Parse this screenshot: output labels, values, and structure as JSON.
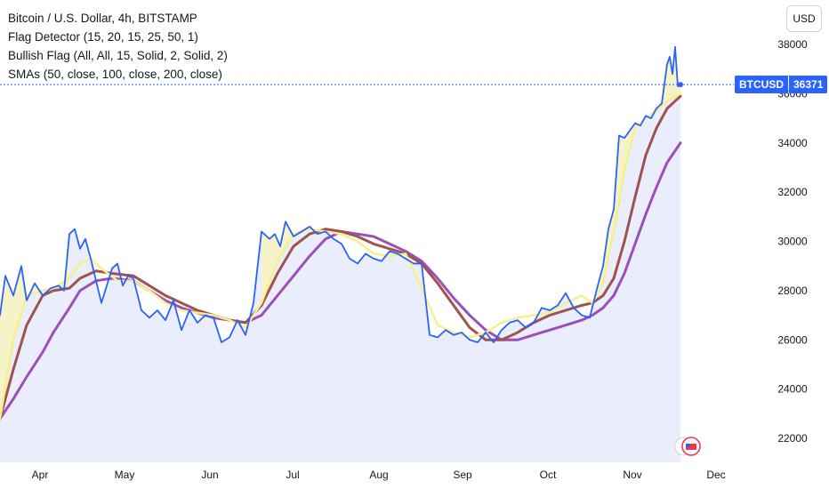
{
  "legend": {
    "line1": "Bitcoin / U.S. Dollar, 4h, BITSTAMP",
    "line2": "Flag Detector (15, 20, 15, 25, 50, 1)",
    "line3": "Bullish Flag (All, All, 15, Solid, 2, Solid, 2)",
    "line4": "SMAs (50, close, 100, close, 200, close)"
  },
  "currency_button": "USD",
  "last_price": {
    "symbol": "BTCUSD",
    "value": "36371"
  },
  "colors": {
    "price": "#2962ff",
    "sma50": "#f5f08c",
    "sma100": "#a0524f",
    "sma200": "#9c4fb8",
    "fill": "#e6ebfb",
    "flag": "#f7f3c2"
  },
  "chart_data": {
    "type": "line",
    "x_ticks": [
      "Apr",
      "May",
      "Jun",
      "Jul",
      "Aug",
      "Sep",
      "Oct",
      "Nov",
      "Dec"
    ],
    "y_ticks": [
      "22000",
      "24000",
      "26000",
      "28000",
      "30000",
      "32000",
      "34000",
      "36000",
      "38000"
    ],
    "ylim": [
      21500,
      39000
    ],
    "xlim": [
      0,
      255
    ],
    "grid": false,
    "series": [
      {
        "key": "price",
        "x": [
          0,
          2,
          5,
          8,
          10,
          13,
          16,
          19,
          22,
          24,
          26,
          28,
          30,
          32,
          34,
          36,
          38,
          40,
          42,
          44,
          46,
          48,
          50,
          53,
          56,
          59,
          62,
          65,
          68,
          71,
          74,
          77,
          80,
          83,
          86,
          89,
          92,
          95,
          98,
          101,
          103,
          105,
          107,
          110,
          113,
          116,
          119,
          122,
          125,
          128,
          131,
          134,
          137,
          140,
          143,
          146,
          149,
          152,
          155,
          158,
          161,
          164,
          167,
          170,
          173,
          176,
          179,
          182,
          185,
          188,
          191,
          194,
          197,
          200,
          203,
          206,
          209,
          212,
          215,
          218,
          221,
          224,
          226,
          228,
          230,
          232,
          234,
          236,
          238,
          240,
          242,
          244,
          246,
          248,
          250,
          251,
          252,
          253,
          254,
          255
        ],
        "y": [
          27000,
          28600,
          27800,
          29000,
          27600,
          28300,
          27800,
          28100,
          28200,
          28000,
          30300,
          30500,
          29700,
          30100,
          29300,
          28400,
          27500,
          28200,
          28900,
          29100,
          28200,
          28600,
          28500,
          27200,
          26900,
          27200,
          26800,
          27600,
          26400,
          27200,
          26700,
          27000,
          26900,
          25900,
          26100,
          26800,
          26200,
          27500,
          30400,
          30100,
          30300,
          29800,
          30800,
          30200,
          30400,
          30600,
          30300,
          30400,
          30100,
          29900,
          29300,
          29100,
          29500,
          29300,
          29200,
          29600,
          29500,
          29300,
          29100,
          29100,
          26200,
          26100,
          26400,
          26200,
          26300,
          26000,
          25900,
          26300,
          25900,
          26400,
          26700,
          26800,
          26500,
          26700,
          27300,
          27200,
          27400,
          27900,
          27300,
          27000,
          26900,
          28200,
          29000,
          30500,
          31300,
          34300,
          34200,
          34500,
          34800,
          34700,
          35100,
          35000,
          35400,
          35600,
          37200,
          37500,
          36800,
          37900,
          36300,
          36371
        ]
      },
      {
        "key": "sma50",
        "x": [
          0,
          5,
          10,
          16,
          20,
          26,
          30,
          34,
          38,
          44,
          50,
          56,
          62,
          68,
          74,
          80,
          86,
          92,
          98,
          104,
          110,
          116,
          122,
          128,
          134,
          140,
          146,
          152,
          158,
          164,
          170,
          176,
          182,
          188,
          194,
          200,
          206,
          212,
          218,
          222,
          226,
          230,
          234,
          238,
          242,
          246,
          250,
          255
        ],
        "y": [
          22800,
          26000,
          27800,
          28000,
          28100,
          28500,
          29100,
          29300,
          28900,
          28400,
          28400,
          28000,
          27500,
          27200,
          27100,
          27000,
          26800,
          26500,
          27500,
          29200,
          30300,
          30500,
          30400,
          30300,
          30000,
          29500,
          29400,
          29500,
          28100,
          26600,
          26300,
          26100,
          26300,
          26700,
          26900,
          27000,
          27100,
          27500,
          27800,
          27500,
          28300,
          30400,
          32900,
          34600,
          35000,
          35300,
          35700,
          36000
        ]
      },
      {
        "key": "sma100",
        "x": [
          0,
          5,
          10,
          16,
          20,
          26,
          30,
          36,
          42,
          50,
          56,
          62,
          68,
          74,
          80,
          86,
          92,
          98,
          104,
          110,
          116,
          122,
          128,
          134,
          140,
          146,
          152,
          158,
          164,
          170,
          176,
          182,
          188,
          194,
          200,
          206,
          212,
          218,
          222,
          226,
          230,
          234,
          238,
          242,
          246,
          250,
          255
        ],
        "y": [
          22800,
          24800,
          26600,
          27800,
          28000,
          28100,
          28500,
          28800,
          28700,
          28600,
          28200,
          27800,
          27500,
          27200,
          27000,
          26800,
          26700,
          27400,
          28700,
          29800,
          30300,
          30500,
          30400,
          30200,
          29900,
          29700,
          29500,
          29100,
          28300,
          27400,
          26500,
          26000,
          26000,
          26300,
          26700,
          27000,
          27200,
          27400,
          27500,
          27800,
          28500,
          30000,
          31800,
          33500,
          34600,
          35400,
          35900
        ]
      },
      {
        "key": "sma200",
        "x": [
          0,
          5,
          10,
          16,
          20,
          26,
          30,
          36,
          42,
          50,
          56,
          62,
          68,
          74,
          80,
          86,
          92,
          98,
          104,
          110,
          116,
          122,
          128,
          134,
          140,
          146,
          152,
          158,
          164,
          170,
          176,
          182,
          188,
          194,
          200,
          206,
          212,
          218,
          222,
          226,
          230,
          234,
          238,
          242,
          246,
          250,
          255
        ],
        "y": [
          22800,
          23600,
          24500,
          25500,
          26300,
          27300,
          28000,
          28400,
          28500,
          28400,
          28000,
          27600,
          27300,
          27100,
          26900,
          26800,
          26700,
          27000,
          27800,
          28600,
          29400,
          30100,
          30400,
          30300,
          30200,
          29900,
          29600,
          29200,
          28500,
          27700,
          27000,
          26400,
          26000,
          26000,
          26200,
          26400,
          26600,
          26800,
          27000,
          27300,
          27800,
          28700,
          29900,
          31100,
          32200,
          33200,
          34000
        ]
      }
    ]
  }
}
